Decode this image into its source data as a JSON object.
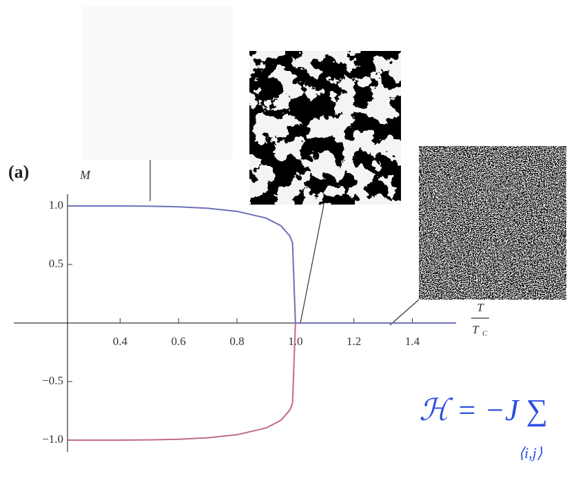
{
  "chart_data": {
    "type": "line",
    "annotation": "(a)",
    "ylabel": "M",
    "xlabel": {
      "numerator": "T",
      "denominator": "T",
      "denominator_sub": "C"
    },
    "formula": "ℋ = −J ∑",
    "formula_subscript": "⟨i,j⟩",
    "x": [
      0.22,
      0.4,
      0.5,
      0.6,
      0.7,
      0.8,
      0.9,
      0.95,
      0.98,
      0.99,
      1.0,
      1.55
    ],
    "series": [
      {
        "color": "#6b70b8",
        "values": [
          1.0,
          1.0,
          0.998,
          0.993,
          0.98,
          0.954,
          0.896,
          0.831,
          0.746,
          0.687,
          0,
          0
        ]
      },
      {
        "color": "#c06a86",
        "values": [
          -1.0,
          -1.0,
          -0.998,
          -0.993,
          -0.98,
          -0.954,
          -0.896,
          -0.831,
          -0.746,
          -0.687,
          0,
          null
        ]
      }
    ],
    "xlim": [
      0.22,
      1.545
    ],
    "ylim": [
      -1.1,
      1.1
    ],
    "xticks": [
      0.4,
      0.6,
      0.8,
      {
        "value": 1,
        "label": "1.0"
      },
      1.2,
      1.4
    ],
    "yticks": [
      {
        "value": 1,
        "label": "1.0"
      },
      0.5,
      {
        "value": -0.5,
        "label": "−0.5"
      },
      {
        "value": -1,
        "label": "−1.0"
      }
    ]
  }
}
